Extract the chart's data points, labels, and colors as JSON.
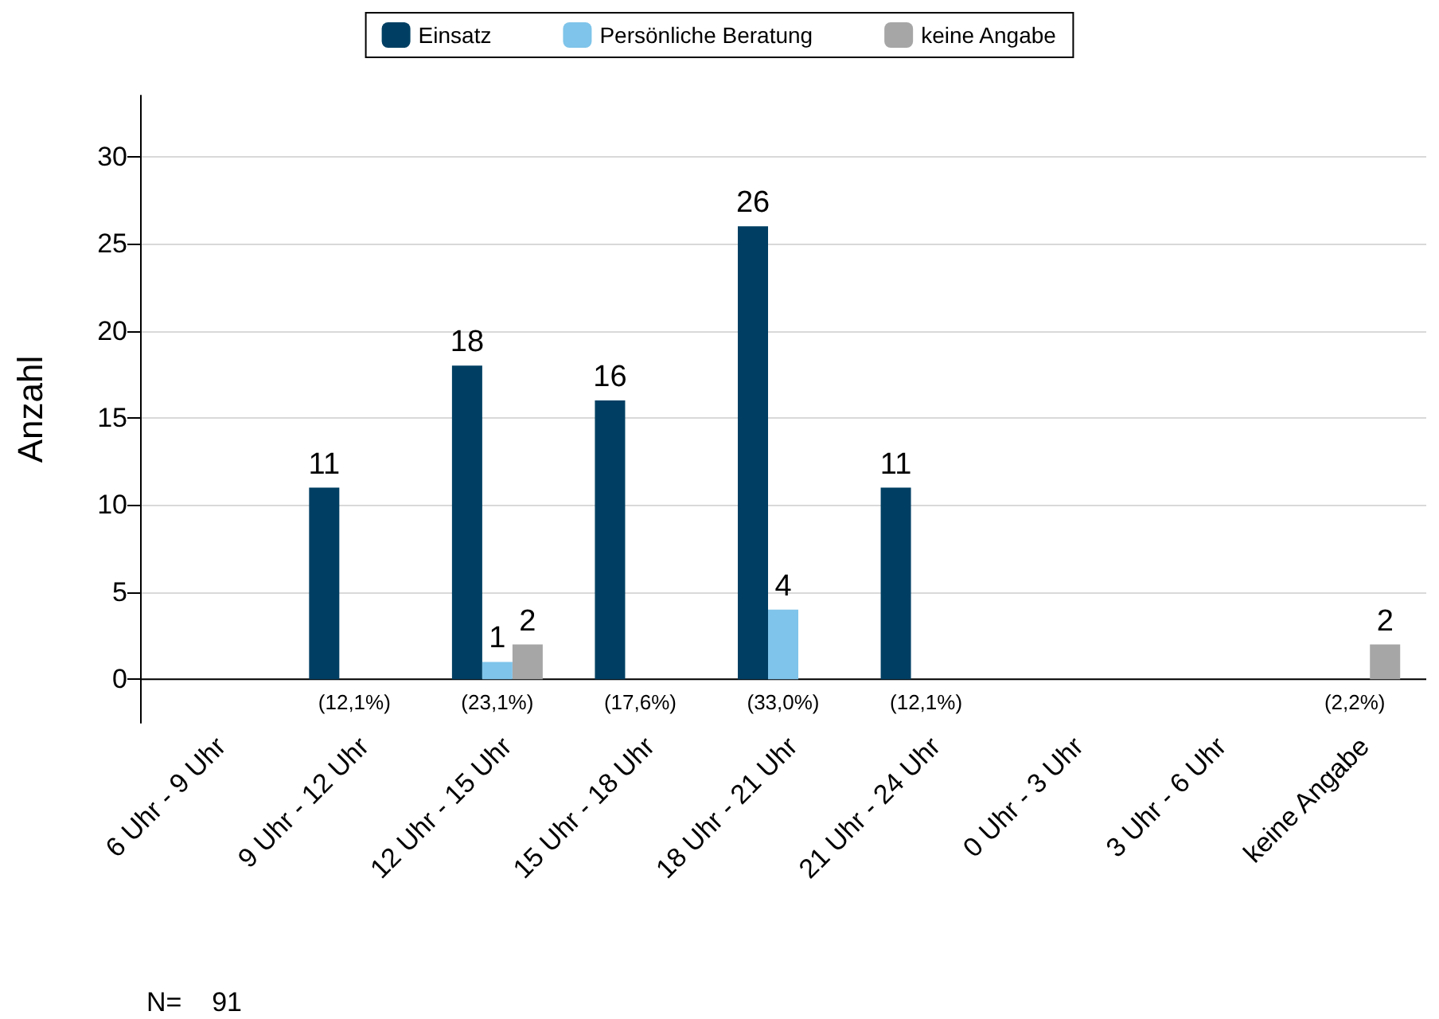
{
  "chart_data": {
    "type": "bar",
    "ylabel": "Anzahl",
    "categories": [
      "6 Uhr - 9 Uhr",
      "9 Uhr - 12 Uhr",
      "12 Uhr - 15 Uhr",
      "15 Uhr - 18 Uhr",
      "18 Uhr - 21 Uhr",
      "21 Uhr - 24 Uhr",
      "0 Uhr - 3 Uhr",
      "3 Uhr - 6 Uhr",
      "keine Angabe"
    ],
    "series": [
      {
        "name": "Einsatz",
        "color": "#003f63",
        "values": [
          0,
          11,
          18,
          16,
          26,
          11,
          0,
          0,
          0
        ],
        "value_labels": [
          null,
          "11",
          "18",
          "16",
          "26",
          "11",
          null,
          null,
          null
        ]
      },
      {
        "name": "Persönliche Beratung",
        "color": "#7fc4ea",
        "values": [
          0,
          0,
          1,
          0,
          4,
          0,
          0,
          0,
          0
        ],
        "value_labels": [
          null,
          null,
          "1",
          null,
          "4",
          null,
          null,
          null,
          null
        ]
      },
      {
        "name": "keine Angabe",
        "color": "#a6a6a6",
        "values": [
          0,
          0,
          2,
          0,
          0,
          0,
          0,
          0,
          2
        ],
        "value_labels": [
          null,
          null,
          "2",
          null,
          null,
          null,
          null,
          null,
          "2"
        ]
      }
    ],
    "ylim": [
      -2.5,
      33.5
    ],
    "yticks": [
      0,
      5,
      10,
      15,
      20,
      25,
      30
    ],
    "grid": "y",
    "legend": "top",
    "annotations": [
      "(12,1%)",
      "(23,1%)",
      "(17,6%)",
      "(33,0%)",
      "(12,1%)",
      "(2,2%)",
      "N=    91"
    ]
  }
}
